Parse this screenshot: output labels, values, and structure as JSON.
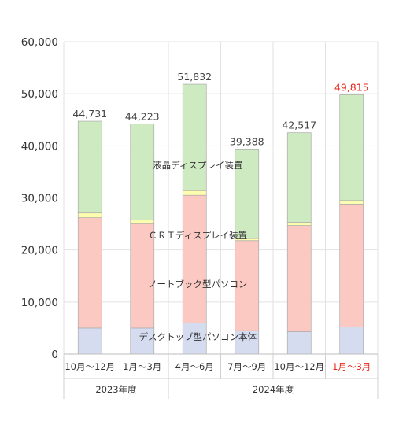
{
  "chart_data": {
    "type": "bar",
    "stacked": true,
    "categories": [
      "10月～12月",
      "1月～3月",
      "4月～6月",
      "7月～9月",
      "10月～12月",
      "1月～3月"
    ],
    "year_groups": [
      {
        "label": "2023年度",
        "span": 2
      },
      {
        "label": "2024年度",
        "span": 4
      }
    ],
    "totals": [
      "44,731",
      "44,223",
      "51,832",
      "39,388",
      "42,517",
      "49,815"
    ],
    "highlight_index": 5,
    "series": [
      {
        "name": "デスクトップ型パソコン本体",
        "values": [
          5000,
          5000,
          6000,
          4500,
          4300,
          5200
        ],
        "color": "#d6dcf0"
      },
      {
        "name": "ノートブック型パソコン",
        "values": [
          21200,
          20000,
          24500,
          17300,
          20400,
          23600
        ],
        "color": "#fcc9c2"
      },
      {
        "name": "ＣＲＴディスプレイ装置",
        "values": [
          900,
          750,
          900,
          400,
          600,
          700
        ],
        "color": "#fdfdb0"
      },
      {
        "name": "液晶ディスプレイ装置",
        "values": [
          17631,
          18473,
          20432,
          17188,
          17217,
          20315
        ],
        "color": "#cdeac0"
      }
    ],
    "ylim": [
      0,
      60000
    ],
    "yticks": [
      "0",
      "10,000",
      "20,000",
      "30,000",
      "40,000",
      "50,000",
      "60,000"
    ],
    "grid": true,
    "highlight_color": "#e8261a"
  }
}
